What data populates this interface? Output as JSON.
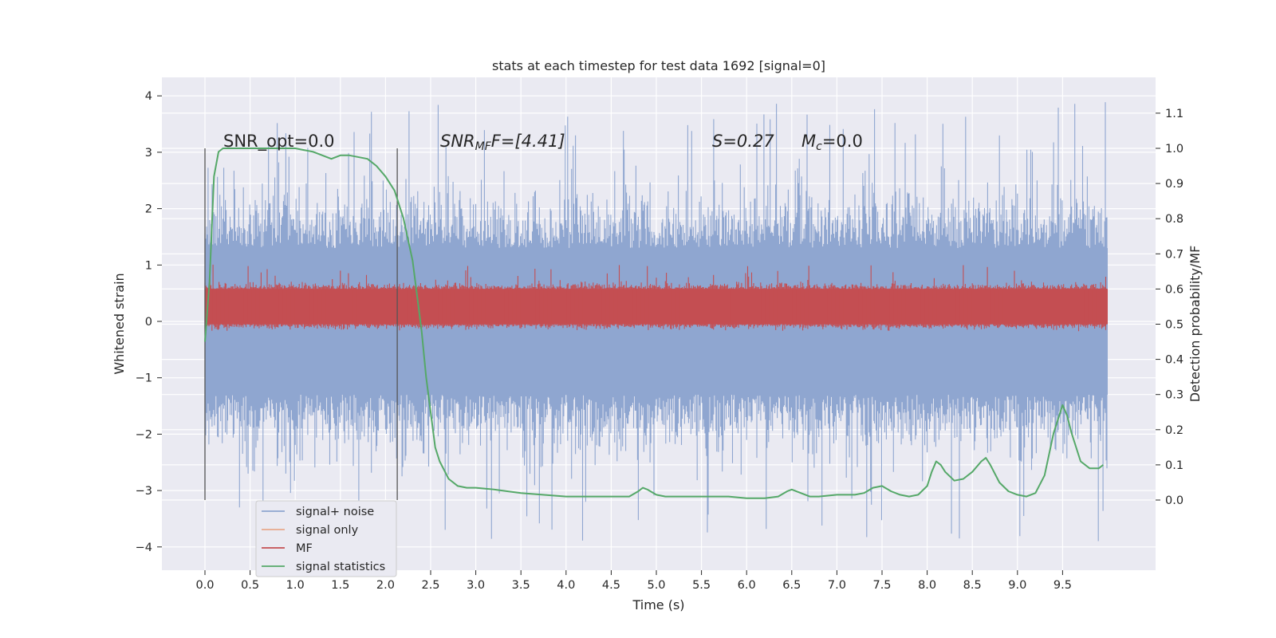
{
  "chart_data": {
    "type": "line",
    "title": "stats at each timestep for test data 1692 [signal=0]",
    "xlabel": "Time (s)",
    "ylabel": "Whitened strain",
    "y2label": "Detection probability/MF",
    "xlim": [
      -0.5,
      10.5
    ],
    "ylim": [
      -4.4,
      4.3
    ],
    "y2lim": [
      -0.2,
      1.22
    ],
    "xticks": [
      "0.0",
      "0.5",
      "1.0",
      "1.5",
      "2.0",
      "2.5",
      "3.0",
      "3.5",
      "4.0",
      "4.5",
      "5.0",
      "5.5",
      "6.0",
      "6.5",
      "7.0",
      "7.5",
      "8.0",
      "8.5",
      "9.0",
      "9.5"
    ],
    "yticks": [
      "4",
      "3",
      "2",
      "1",
      "0",
      "−1",
      "−2",
      "−3",
      "−4"
    ],
    "y2ticks": [
      "1.1",
      "1.0",
      "0.9",
      "0.8",
      "0.7",
      "0.6",
      "0.5",
      "0.4",
      "0.3",
      "0.2",
      "0.1",
      "0.0"
    ],
    "grid": true,
    "legend_position": "lower-left",
    "annotations": {
      "snr_opt": "SNR_opt=0.0",
      "snr_mf_prefix": "SNR",
      "snr_mf_sub": "MF",
      "snr_mf_suffix": "F=[4.41]",
      "s_val": "S=0.27",
      "mc_prefix": "M",
      "mc_sub": "c",
      "mc_suffix": "=0.0"
    },
    "vlines_x": [
      0.0,
      2.13
    ],
    "series": [
      {
        "name": "signal+ noise",
        "color": "#8fa6d0",
        "axis": "left",
        "amplitude_range": [
          -3.9,
          3.9
        ],
        "typical_range": [
          -1.3,
          1.3
        ]
      },
      {
        "name": "signal only",
        "color": "#e8a98c",
        "axis": "left",
        "values": "0 everywhere"
      },
      {
        "name": "MF",
        "color": "#c44e52",
        "axis": "right",
        "typical_range": [
          0.5,
          0.6
        ],
        "max": 0.67
      },
      {
        "name": "signal statistics",
        "color": "#55a868",
        "axis": "right",
        "x": [
          0.0,
          0.05,
          0.1,
          0.15,
          0.2,
          0.4,
          0.7,
          1.0,
          1.2,
          1.3,
          1.4,
          1.5,
          1.6,
          1.8,
          1.9,
          2.0,
          2.1,
          2.2,
          2.3,
          2.4,
          2.45,
          2.5,
          2.55,
          2.6,
          2.7,
          2.8,
          2.9,
          3.0,
          3.2,
          3.5,
          4.0,
          4.3,
          4.6,
          4.7,
          4.8,
          4.85,
          4.9,
          5.0,
          5.1,
          5.5,
          5.8,
          6.0,
          6.2,
          6.35,
          6.45,
          6.5,
          6.6,
          6.7,
          6.8,
          7.0,
          7.2,
          7.3,
          7.4,
          7.5,
          7.6,
          7.7,
          7.8,
          7.9,
          8.0,
          8.05,
          8.1,
          8.15,
          8.2,
          8.3,
          8.4,
          8.5,
          8.6,
          8.65,
          8.7,
          8.8,
          8.9,
          9.0,
          9.1,
          9.2,
          9.3,
          9.4,
          9.5,
          9.55,
          9.6,
          9.7,
          9.8,
          9.9,
          9.95
        ],
        "values": [
          0.45,
          0.62,
          0.92,
          0.99,
          1.0,
          1.0,
          1.0,
          1.0,
          0.99,
          0.98,
          0.97,
          0.98,
          0.98,
          0.97,
          0.95,
          0.92,
          0.88,
          0.8,
          0.68,
          0.48,
          0.35,
          0.25,
          0.15,
          0.11,
          0.06,
          0.04,
          0.035,
          0.035,
          0.03,
          0.02,
          0.01,
          0.01,
          0.01,
          0.01,
          0.025,
          0.035,
          0.03,
          0.015,
          0.01,
          0.01,
          0.01,
          0.005,
          0.005,
          0.01,
          0.025,
          0.03,
          0.02,
          0.01,
          0.01,
          0.015,
          0.015,
          0.02,
          0.035,
          0.04,
          0.025,
          0.015,
          0.01,
          0.015,
          0.04,
          0.08,
          0.11,
          0.1,
          0.08,
          0.055,
          0.06,
          0.08,
          0.11,
          0.12,
          0.1,
          0.05,
          0.025,
          0.015,
          0.01,
          0.02,
          0.07,
          0.19,
          0.27,
          0.24,
          0.19,
          0.11,
          0.09,
          0.09,
          0.1
        ]
      }
    ]
  }
}
